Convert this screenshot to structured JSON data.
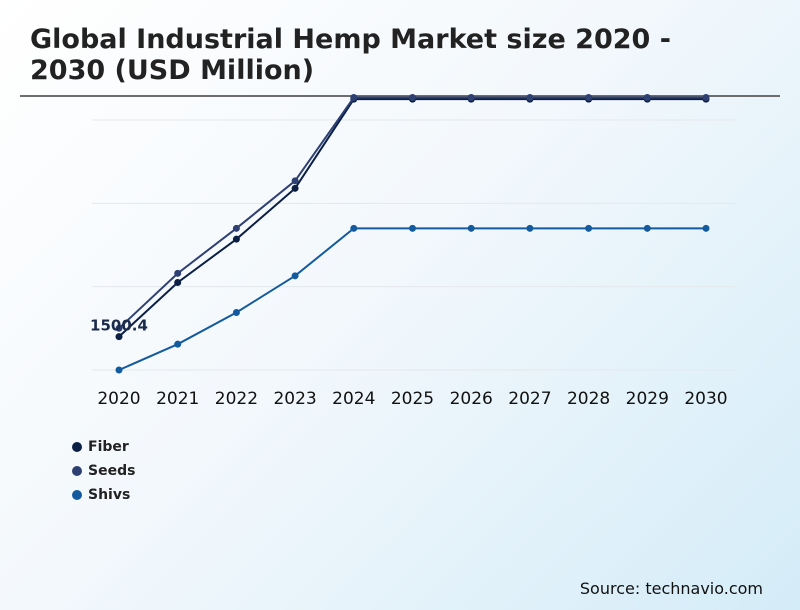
{
  "title": "Global Industrial Hemp Market size 2020 - 2030 (USD Million)",
  "source": "Source: technavio.com",
  "chart_data": {
    "type": "line",
    "title": "Global Industrial Hemp Market size 2020 - 2030 (USD Million)",
    "xlabel": "",
    "ylabel": "",
    "grid": true,
    "legend_position": "bottom-left",
    "categories": [
      "2020",
      "2021",
      "2022",
      "2023",
      "2024",
      "2025",
      "2026",
      "2027",
      "2028",
      "2029",
      "2030"
    ],
    "ylim": [
      1000,
      4000
    ],
    "gridlines": [
      1000,
      2000,
      3000,
      4000
    ],
    "series": [
      {
        "name": "Fiber",
        "color": "#0b1f45",
        "values": [
          1400,
          2050,
          2570,
          3180,
          4250,
          4250,
          4250,
          4250,
          4250,
          4250,
          4250
        ]
      },
      {
        "name": "Seeds",
        "color": "#2e3f72",
        "values": [
          1500.4,
          2160,
          2700,
          3270,
          4270,
          4270,
          4270,
          4270,
          4270,
          4270,
          4270
        ]
      },
      {
        "name": "Shivs",
        "color": "#135b9e",
        "values": [
          1000,
          1310,
          1690,
          2130,
          2700,
          2700,
          2700,
          2700,
          2700,
          2700,
          2700
        ]
      }
    ],
    "annotations": [
      {
        "text": "1500.4",
        "x": "2020",
        "series": "Seeds"
      }
    ]
  }
}
